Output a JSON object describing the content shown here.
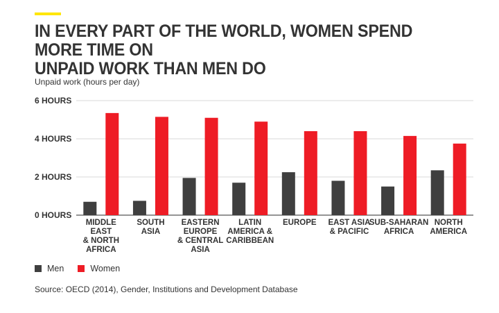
{
  "title_lines": [
    "IN EVERY PART OF THE WORLD, WOMEN SPEND MORE TIME ON",
    "UNPAID WORK THAN MEN DO"
  ],
  "source": "Source: OECD (2014), Gender, Institutions and Development Database",
  "colors": {
    "accent": "#ffe600",
    "men": "#3f3f3f",
    "women": "#ee1c25",
    "grid": "#d9d9d9",
    "text": "#333333"
  },
  "chart_data": {
    "type": "bar",
    "ylabel": "Unpaid work (hours per day)",
    "ylim": [
      0,
      6
    ],
    "yticks": [
      {
        "value": 0,
        "label": "0 HOURS"
      },
      {
        "value": 2,
        "label": "2 HOURS"
      },
      {
        "value": 4,
        "label": "4 HOURS"
      },
      {
        "value": 6,
        "label": "6 HOURS"
      }
    ],
    "categories": [
      [
        "MIDDLE",
        "EAST",
        "& NORTH",
        "AFRICA"
      ],
      [
        "SOUTH",
        "ASIA"
      ],
      [
        "EASTERN",
        "EUROPE",
        "& CENTRAL",
        "ASIA"
      ],
      [
        "LATIN",
        "AMERICA &",
        "CARIBBEAN"
      ],
      [
        "EUROPE"
      ],
      [
        "EAST ASIA",
        "& PACIFIC"
      ],
      [
        "SUB-SAHARAN",
        "AFRICA"
      ],
      [
        "NORTH",
        "AMERICA"
      ]
    ],
    "series": [
      {
        "name": "Men",
        "values": [
          0.7,
          0.75,
          1.95,
          1.7,
          2.25,
          1.8,
          1.5,
          2.35
        ]
      },
      {
        "name": "Women",
        "values": [
          5.35,
          5.15,
          5.1,
          4.9,
          4.4,
          4.4,
          4.15,
          3.75
        ]
      }
    ],
    "grid": true,
    "legend": "bottom-left"
  }
}
